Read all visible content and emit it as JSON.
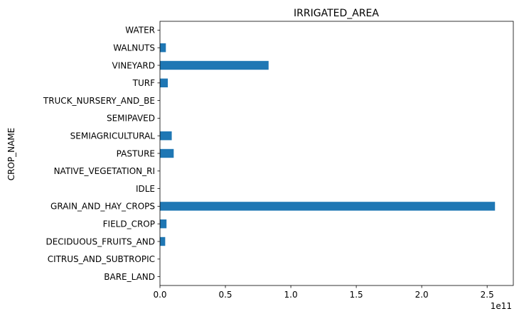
{
  "chart_data": {
    "type": "bar",
    "orientation": "horizontal",
    "title": "IRRIGATED_AREA",
    "xlabel": "",
    "ylabel": "CROP_NAME",
    "offset_label": "1e11",
    "xlim": [
      0,
      270000000000.0
    ],
    "xticks": [
      0,
      50000000000.0,
      100000000000.0,
      150000000000.0,
      200000000000.0,
      250000000000.0
    ],
    "xtick_labels": [
      "0.0",
      "0.5",
      "1.0",
      "1.5",
      "2.0",
      "2.5"
    ],
    "grid": false,
    "legend": "none",
    "bar_color": "#1f77b4",
    "categories": [
      "BARE_LAND",
      "CITRUS_AND_SUBTROPIC",
      "DECIDUOUS_FRUITS_AND",
      "FIELD_CROP",
      "GRAIN_AND_HAY_CROPS",
      "IDLE",
      "NATIVE_VEGETATION_RI",
      "PASTURE",
      "SEMIAGRICULTURAL",
      "SEMIPAVED",
      "TRUCK_NURSERY_AND_BE",
      "TURF",
      "VINEYARD",
      "WALNUTS",
      "WATER"
    ],
    "values": [
      0,
      0,
      4000000000.0,
      5000000000.0,
      256000000000.0,
      0,
      0,
      10500000000.0,
      9000000000.0,
      0,
      0,
      6000000000.0,
      83000000000.0,
      4500000000.0,
      0
    ]
  }
}
